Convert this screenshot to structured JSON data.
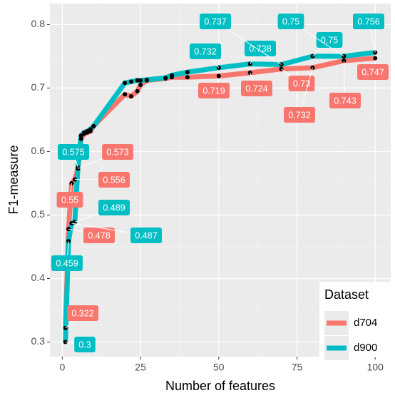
{
  "chart_data": {
    "type": "line",
    "x_label": "Number of features",
    "y_label": "F1-measure",
    "x": [
      1,
      2,
      3,
      4,
      5,
      6,
      7,
      8,
      9,
      10,
      20,
      22,
      24,
      25,
      27,
      33,
      35,
      40,
      50,
      60,
      70,
      80,
      90,
      100
    ],
    "series": [
      {
        "name": "d704",
        "color": "#F8766D",
        "values": [
          0.322,
          0.478,
          0.55,
          0.556,
          0.573,
          0.62,
          0.628,
          0.63,
          0.632,
          0.64,
          0.69,
          0.687,
          0.695,
          0.705,
          0.712,
          0.715,
          0.717,
          0.717,
          0.719,
          0.724,
          0.73,
          0.732,
          0.743,
          0.747
        ],
        "value_labels": [
          "0.322",
          "0.478",
          "0.55",
          "0.556",
          "0.573",
          null,
          null,
          null,
          null,
          null,
          null,
          null,
          null,
          null,
          null,
          null,
          null,
          null,
          "0.719",
          "0.724",
          "0.73",
          "0.732",
          "0.743",
          "0.747"
        ]
      },
      {
        "name": "d900",
        "color": "#00BFC4",
        "values": [
          0.3,
          0.459,
          0.487,
          0.489,
          0.575,
          0.625,
          0.63,
          0.632,
          0.635,
          0.64,
          0.708,
          0.71,
          0.712,
          0.712,
          0.713,
          0.716,
          0.72,
          0.725,
          0.732,
          0.738,
          0.737,
          0.75,
          0.75,
          0.756
        ],
        "value_labels": [
          "0.3",
          "0.459",
          "0.487",
          "0.489",
          "0.575",
          null,
          null,
          null,
          null,
          null,
          null,
          null,
          null,
          null,
          null,
          null,
          null,
          null,
          "0.732",
          "0.738",
          "0.737",
          "0.75",
          "0.75",
          "0.756"
        ]
      }
    ],
    "xlim": [
      -3.95,
      104.95
    ],
    "xticks": [
      0,
      25,
      50,
      75,
      100
    ],
    "ylim": [
      0.277,
      0.833
    ],
    "yticks": [
      0.3,
      0.4,
      0.5,
      0.6,
      0.7,
      0.8
    ],
    "grid": true,
    "legend_title": "Dataset",
    "legend_position": "bottom-right"
  }
}
